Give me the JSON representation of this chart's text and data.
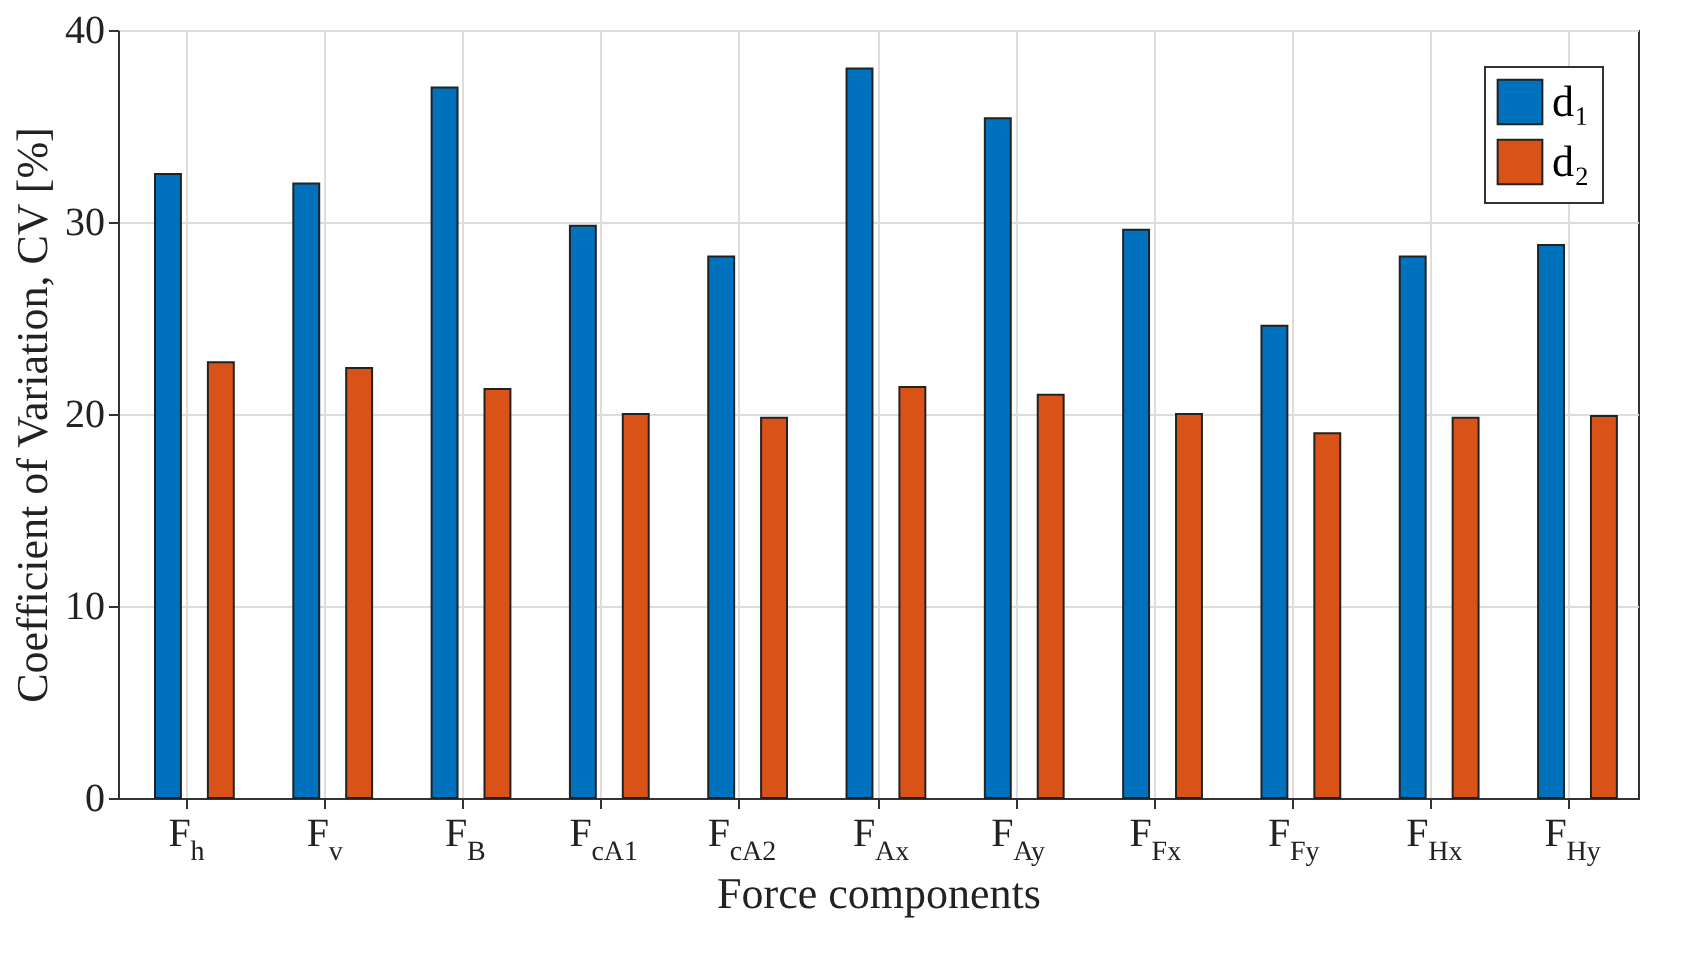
{
  "chart_data": {
    "type": "bar",
    "xlabel": "Force components",
    "ylabel": "Coefficient of Variation, CV [%]",
    "categories": [
      "F$_{h}$",
      "F$_{v}$",
      "F$_{B}$",
      "F$_{cA1}$",
      "F$_{cA2}$",
      "F$_{Ax}$",
      "F$_{Ay}$",
      "F$_{Fx}$",
      "F$_{Fy}$",
      "F$_{Hx}$",
      "F$_{Hy}$"
    ],
    "series": [
      {
        "name": "d₁",
        "color": "#0072bd",
        "values": [
          32.5,
          32.0,
          37.0,
          29.8,
          28.2,
          38.0,
          35.4,
          29.6,
          24.6,
          28.2,
          28.8
        ]
      },
      {
        "name": "d₂",
        "color": "#d95319",
        "values": [
          22.7,
          22.4,
          21.3,
          20.0,
          19.8,
          21.4,
          21.0,
          20.0,
          19.0,
          19.8,
          19.9
        ]
      }
    ],
    "ylim": [
      0,
      40
    ],
    "yticks": [
      0,
      10,
      20,
      30,
      40
    ],
    "grid": true,
    "legend": "top right"
  }
}
